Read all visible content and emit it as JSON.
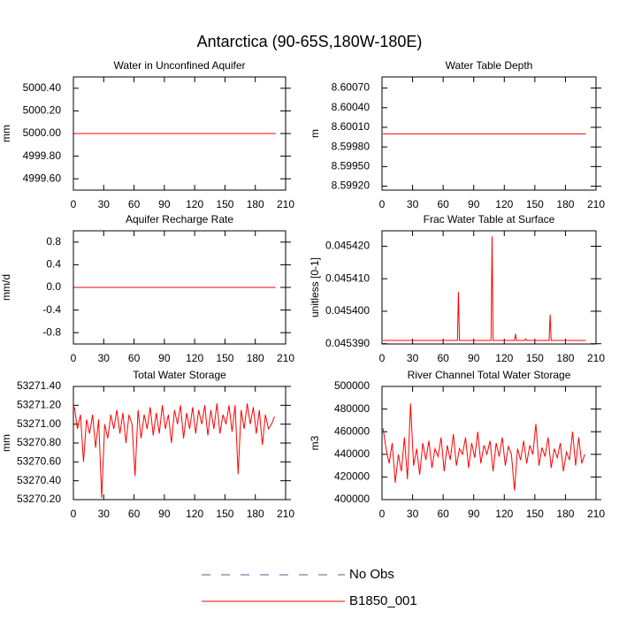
{
  "title": "Antarctica (90-65S,180W-180E)",
  "legend": [
    {
      "name": "No Obs",
      "color": "#5a5aa0",
      "dashed": true
    },
    {
      "name": "B1850_001",
      "color": "#ff0000",
      "dashed": false
    }
  ],
  "chart_data": [
    {
      "type": "line",
      "title": "Water in Unconfined Aquifer",
      "ylabel": "mm",
      "color": "#ff0000",
      "x": [
        1,
        200
      ],
      "values": [
        5000.0,
        5000.0
      ],
      "xlim": [
        0,
        210
      ],
      "xticks": [
        0,
        30,
        60,
        90,
        120,
        150,
        180,
        210
      ],
      "ylim": [
        4999.5,
        5000.5
      ],
      "yticks": [
        {
          "value": 4999.6,
          "label": "4999.60"
        },
        {
          "value": 4999.8,
          "label": "4999.80"
        },
        {
          "value": 5000.0,
          "label": "5000.00"
        },
        {
          "value": 5000.2,
          "label": "5000.20"
        },
        {
          "value": 5000.4,
          "label": "5000.40"
        }
      ]
    },
    {
      "type": "line",
      "title": "Water Table Depth",
      "ylabel": "m",
      "color": "#ff0000",
      "x": [
        1,
        200
      ],
      "values": [
        8.6,
        8.6
      ],
      "xlim": [
        0,
        210
      ],
      "xticks": [
        0,
        30,
        60,
        90,
        120,
        150,
        180,
        210
      ],
      "ylim": [
        8.59914,
        8.60087
      ],
      "yticks": [
        {
          "value": 8.5992,
          "label": "8.59920"
        },
        {
          "value": 8.5995,
          "label": "8.59950"
        },
        {
          "value": 8.5998,
          "label": "8.59980"
        },
        {
          "value": 8.6001,
          "label": "8.60010"
        },
        {
          "value": 8.6004,
          "label": "8.60040"
        },
        {
          "value": 8.6007,
          "label": "8.60070"
        }
      ]
    },
    {
      "type": "line",
      "title": "Aquifer Recharge Rate",
      "ylabel": "mm/d",
      "color": "#ff0000",
      "x": [
        1,
        200
      ],
      "values": [
        0,
        0
      ],
      "xlim": [
        0,
        210
      ],
      "xticks": [
        0,
        30,
        60,
        90,
        120,
        150,
        180,
        210
      ],
      "ylim": [
        -1,
        1
      ],
      "yticks": [
        -0.8,
        -0.4,
        {
          "value": 0,
          "label": "0.0"
        },
        0.4,
        0.8
      ]
    },
    {
      "type": "line",
      "title": "Frac Water Table at Surface",
      "ylabel": "unitless [0-1]",
      "color": "#ff0000",
      "x": [
        1,
        74,
        75,
        76,
        107,
        108,
        109,
        130,
        131,
        132,
        140,
        141,
        142,
        164,
        165,
        166,
        200
      ],
      "values": [
        0.045391,
        0.045391,
        0.045406,
        0.045391,
        0.045391,
        0.045423,
        0.045391,
        0.045391,
        0.045393,
        0.045391,
        0.045391,
        0.0453915,
        0.045391,
        0.045391,
        0.045399,
        0.045391,
        0.045391
      ],
      "xlim": [
        0,
        210
      ],
      "xticks": [
        0,
        30,
        60,
        90,
        120,
        150,
        180,
        210
      ],
      "ylim": [
        0.04538992,
        0.04542475
      ],
      "yticks": [
        {
          "value": 0.04539,
          "label": "0.045390"
        },
        {
          "value": 0.0454,
          "label": "0.045400"
        },
        {
          "value": 0.04541,
          "label": "0.045410"
        },
        {
          "value": 0.04542,
          "label": "0.045420"
        }
      ]
    },
    {
      "type": "line",
      "title": "Total Water Storage",
      "ylabel": "mm",
      "color": "#ff0000",
      "x": [
        1,
        4,
        7,
        10,
        13,
        16,
        19,
        22,
        25,
        28,
        31,
        34,
        37,
        40,
        43,
        46,
        49,
        52,
        55,
        58,
        61,
        64,
        67,
        70,
        73,
        76,
        79,
        82,
        85,
        88,
        91,
        94,
        97,
        100,
        103,
        106,
        109,
        112,
        115,
        118,
        121,
        124,
        127,
        130,
        133,
        136,
        139,
        142,
        145,
        148,
        151,
        154,
        157,
        160,
        163,
        166,
        169,
        172,
        175,
        178,
        181,
        184,
        187,
        190,
        193,
        196,
        199
      ],
      "values": [
        53271.18,
        53270.95,
        53271.1,
        53270.6,
        53271.05,
        53270.9,
        53271.1,
        53270.75,
        53271.05,
        53270.22,
        53271.0,
        53270.85,
        53271.1,
        53270.95,
        53271.15,
        53270.9,
        53271.12,
        53270.8,
        53271.1,
        53271.0,
        53270.45,
        53271.15,
        53270.85,
        53271.1,
        53270.95,
        53271.18,
        53270.88,
        53271.12,
        53270.9,
        53271.2,
        53270.95,
        53271.1,
        53270.8,
        53271.15,
        53271.0,
        53271.2,
        53270.85,
        53271.12,
        53270.95,
        53271.18,
        53270.9,
        53271.15,
        53271.0,
        53271.2,
        53270.88,
        53271.15,
        53270.95,
        53271.22,
        53270.9,
        53271.1,
        53271.0,
        53271.2,
        53270.92,
        53271.2,
        53270.47,
        53271.15,
        53270.95,
        53271.22,
        53271.0,
        53271.18,
        53270.9,
        53271.15,
        53270.78,
        53271.1,
        53270.95,
        53271.0,
        53271.08
      ],
      "xlim": [
        0,
        210
      ],
      "xticks": [
        0,
        30,
        60,
        90,
        120,
        150,
        180,
        210
      ],
      "ylim": [
        53270.2,
        53271.4
      ],
      "yticks": [
        {
          "value": 53270.2,
          "label": "53270.20"
        },
        {
          "value": 53270.4,
          "label": "53270.40"
        },
        {
          "value": 53270.6,
          "label": "53270.60"
        },
        {
          "value": 53270.8,
          "label": "53270.80"
        },
        {
          "value": 53271.0,
          "label": "53271.00"
        },
        {
          "value": 53271.2,
          "label": "53271.20"
        },
        {
          "value": 53271.4,
          "label": "53271.40"
        }
      ]
    },
    {
      "type": "line",
      "title": "River Channel Total Water Storage",
      "ylabel": "m3",
      "color": "#ff0000",
      "x": [
        1,
        4,
        7,
        10,
        13,
        16,
        19,
        22,
        25,
        28,
        31,
        34,
        37,
        40,
        43,
        46,
        49,
        52,
        55,
        58,
        61,
        64,
        67,
        70,
        73,
        76,
        79,
        82,
        85,
        88,
        91,
        94,
        97,
        100,
        103,
        106,
        109,
        112,
        115,
        118,
        121,
        124,
        127,
        130,
        133,
        136,
        139,
        142,
        145,
        148,
        151,
        154,
        157,
        160,
        163,
        166,
        169,
        172,
        175,
        178,
        181,
        184,
        187,
        190,
        193,
        196,
        199
      ],
      "values": [
        463000,
        445000,
        432000,
        450000,
        415000,
        440000,
        425000,
        455000,
        418000,
        485000,
        430000,
        445000,
        422000,
        450000,
        435000,
        452000,
        428000,
        445000,
        438000,
        455000,
        425000,
        448000,
        435000,
        458000,
        430000,
        445000,
        440000,
        455000,
        428000,
        450000,
        437000,
        460000,
        432000,
        448000,
        440000,
        452000,
        425000,
        450000,
        438000,
        455000,
        430000,
        447000,
        440000,
        408000,
        445000,
        435000,
        452000,
        432000,
        448000,
        440000,
        467000,
        430000,
        446000,
        438000,
        455000,
        428000,
        445000,
        437000,
        450000,
        425000,
        442000,
        435000,
        460000,
        430000,
        455000,
        432000,
        440000
      ],
      "xlim": [
        0,
        210
      ],
      "xticks": [
        0,
        30,
        60,
        90,
        120,
        150,
        180,
        210
      ],
      "ylim": [
        400000,
        500000
      ],
      "yticks": [
        400000,
        420000,
        440000,
        460000,
        480000,
        500000
      ]
    }
  ]
}
